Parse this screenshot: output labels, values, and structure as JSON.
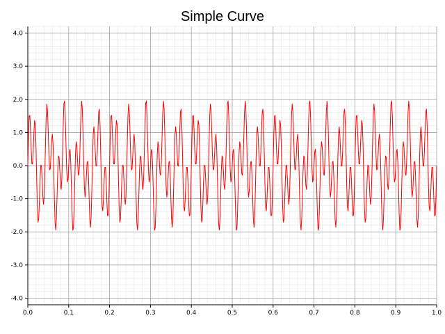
{
  "chart_data": {
    "type": "line",
    "title": "Simple Curve",
    "xlabel": "",
    "ylabel": "",
    "xlim": [
      0.0,
      1.0
    ],
    "ylim": [
      -4.2,
      4.2
    ],
    "x_ticks": [
      "0.0",
      "0.1",
      "0.2",
      "0.3",
      "0.4",
      "0.5",
      "0.6",
      "0.7",
      "0.8",
      "0.9",
      "1.0"
    ],
    "y_ticks": [
      "-4.0",
      "-3.0",
      "-2.0",
      "-1.0",
      "0.0",
      "1.0",
      "2.0",
      "3.0",
      "4.0"
    ],
    "grid": true,
    "legend": "none",
    "line_color": "#ff0000",
    "series": [
      {
        "function": "sin(2π·25·x) + sin(2π·70·x)",
        "components": [
          {
            "amplitude": 1.0,
            "frequency": 25
          },
          {
            "amplitude": 1.0,
            "frequency": 70
          }
        ],
        "x_start": 0.0,
        "x_end": 1.0,
        "samples": 600
      }
    ]
  },
  "colors": {
    "background": "#ffffff",
    "minor_grid": "#e6e6e6",
    "major_grid": "#999999",
    "axis": "#000000",
    "line": "#ff0000"
  }
}
